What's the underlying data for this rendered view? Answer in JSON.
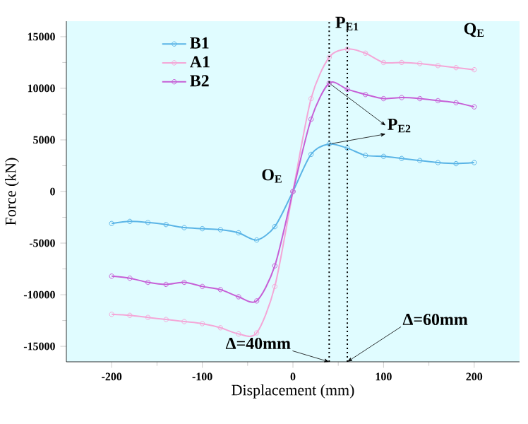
{
  "chart_data": {
    "type": "line",
    "xlabel": "Displacement (mm)",
    "ylabel": "Force (kN)",
    "x": [
      -200,
      -180,
      -160,
      -140,
      -120,
      -100,
      -80,
      -60,
      -40,
      -20,
      0,
      20,
      40,
      60,
      80,
      100,
      120,
      140,
      160,
      180,
      200
    ],
    "series": [
      {
        "name": "B1",
        "color": "#5ab4e6",
        "values": [
          -3100,
          -2900,
          -3000,
          -3200,
          -3500,
          -3600,
          -3700,
          -4000,
          -4700,
          -3400,
          0,
          3600,
          4600,
          4200,
          3500,
          3400,
          3200,
          3000,
          2800,
          2700,
          2800
        ]
      },
      {
        "name": "A1",
        "color": "#f4a6d7",
        "values": [
          -11900,
          -12000,
          -12200,
          -12400,
          -12600,
          -12800,
          -13200,
          -13800,
          -13700,
          -9200,
          0,
          9000,
          13000,
          13800,
          13400,
          12500,
          12500,
          12400,
          12200,
          12000,
          11800
        ]
      },
      {
        "name": "B2",
        "color": "#c65fd6",
        "values": [
          -8200,
          -8400,
          -8800,
          -9000,
          -8800,
          -9200,
          -9500,
          -10200,
          -10600,
          -7200,
          0,
          7000,
          10500,
          9900,
          9400,
          9000,
          9100,
          9000,
          8800,
          8600,
          8200
        ]
      }
    ],
    "xlim": [
      -250,
      250
    ],
    "ylim": [
      -16500,
      16500
    ],
    "xticks": [
      -200,
      -100,
      0,
      100,
      200
    ],
    "yticks": [
      -15000,
      -10000,
      -5000,
      0,
      5000,
      10000,
      15000
    ],
    "ref_lines": [
      {
        "axis": "x",
        "value": 40,
        "line_style": "dotted",
        "color": "#000000"
      },
      {
        "axis": "x",
        "value": 60,
        "line_style": "dotted",
        "color": "#000000"
      }
    ],
    "annotations": [
      {
        "text": "P$_{E1}$",
        "x": 60,
        "y": 13800
      },
      {
        "text": "Q$_{E}$",
        "x": 200,
        "y": 11800
      },
      {
        "text": "P$_{E2}$",
        "x": 40,
        "y": 10500
      },
      {
        "text": "O$_{E}$",
        "x": 0,
        "y": 0
      },
      {
        "text": "Δ=40mm",
        "x": 40,
        "y": -16500
      },
      {
        "text": "Δ=60mm",
        "x": 60,
        "y": -16500
      }
    ],
    "legend": "top left",
    "marker": "circle",
    "line_style": "solid",
    "grid": false
  }
}
